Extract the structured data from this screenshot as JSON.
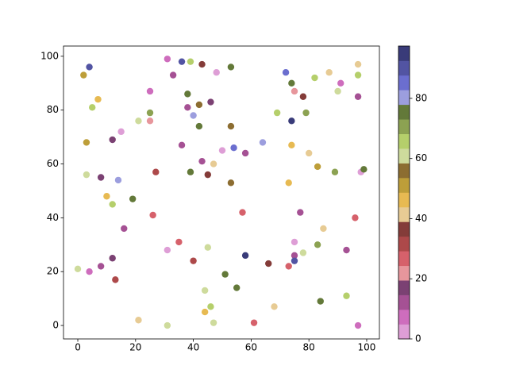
{
  "chart_data": {
    "type": "scatter",
    "x": [
      4,
      2,
      7,
      5,
      3,
      3,
      8,
      12,
      15,
      14,
      10,
      12,
      19,
      16,
      0,
      4,
      8,
      12,
      13,
      21,
      31,
      31,
      35,
      40,
      26,
      27,
      31,
      36,
      39,
      43,
      48,
      53,
      33,
      25,
      25,
      25,
      21,
      38,
      38,
      40,
      42,
      46,
      42,
      36,
      43,
      47,
      45,
      39,
      50,
      53,
      54,
      58,
      53,
      57,
      45,
      44,
      46,
      44,
      47,
      51,
      55,
      58,
      61,
      66,
      68,
      64,
      69,
      72,
      74,
      75,
      78,
      79,
      74,
      74,
      80,
      83,
      73,
      77,
      75,
      75,
      75,
      73,
      78,
      83,
      85,
      84,
      93,
      97,
      93,
      96,
      89,
      98,
      99,
      97,
      91,
      97,
      97,
      87,
      90,
      82
    ],
    "y": [
      96,
      93,
      84,
      81,
      68,
      56,
      55,
      69,
      72,
      54,
      48,
      45,
      47,
      36,
      21,
      20,
      22,
      25,
      17,
      2,
      0,
      28,
      31,
      24,
      41,
      57,
      99,
      98,
      98,
      97,
      94,
      96,
      93,
      87,
      79,
      76,
      76,
      86,
      81,
      78,
      82,
      83,
      74,
      67,
      61,
      60,
      56,
      57,
      65,
      74,
      66,
      64,
      53,
      42,
      29,
      13,
      7,
      5,
      1,
      19,
      14,
      26,
      1,
      23,
      7,
      68,
      79,
      94,
      90,
      87,
      85,
      79,
      76,
      67,
      64,
      59,
      53,
      42,
      31,
      26,
      24,
      22,
      27,
      30,
      36,
      9,
      11,
      0,
      28,
      40,
      57,
      57,
      58,
      85,
      90,
      93,
      97,
      94,
      87,
      92
    ],
    "c": [
      90,
      51,
      47,
      66,
      51,
      61,
      17,
      17,
      2,
      81,
      47,
      66,
      76,
      12,
      61,
      7,
      12,
      17,
      32,
      42,
      61,
      2,
      27,
      32,
      27,
      32,
      7,
      90,
      66,
      37,
      2,
      76,
      12,
      7,
      71,
      22,
      61,
      76,
      12,
      81,
      56,
      17,
      76,
      12,
      12,
      42,
      37,
      76,
      2,
      56,
      85,
      12,
      56,
      27,
      61,
      61,
      66,
      47,
      61,
      76,
      76,
      95,
      27,
      37,
      42,
      81,
      66,
      85,
      76,
      22,
      37,
      71,
      95,
      47,
      42,
      51,
      47,
      12,
      2,
      12,
      90,
      27,
      61,
      71,
      42,
      76,
      66,
      7,
      12,
      27,
      71,
      2,
      76,
      12,
      7,
      66,
      42,
      42,
      61,
      66
    ],
    "colormap": [
      "#de9ed6",
      "#ce6dbd",
      "#a55194",
      "#7b4173",
      "#e7969c",
      "#d6616b",
      "#ad494a",
      "#843c39",
      "#e7cb94",
      "#e7ba52",
      "#bd9e39",
      "#8c6d31",
      "#cedb9c",
      "#b5cf6b",
      "#8ca252",
      "#637939",
      "#9c9ede",
      "#6b6ecf",
      "#5254a3",
      "#393b79"
    ],
    "xlim": [
      -4.95,
      104.4
    ],
    "ylim": [
      -5,
      103.8
    ],
    "xticks": [
      0,
      20,
      40,
      60,
      80,
      100
    ],
    "yticks": [
      0,
      20,
      40,
      60,
      80,
      100
    ],
    "clim": [
      0,
      97.4
    ],
    "cticks": [
      0,
      20,
      40,
      60,
      80
    ]
  }
}
